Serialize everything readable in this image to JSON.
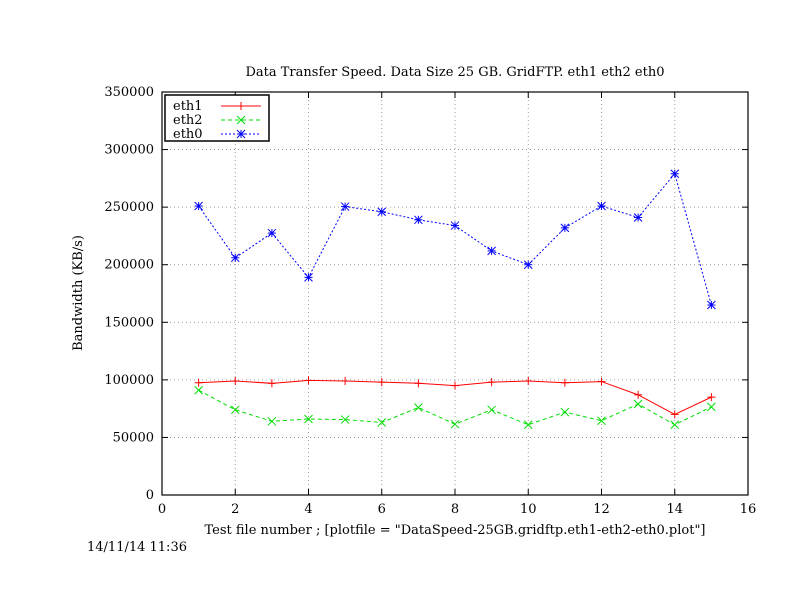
{
  "chart_data": {
    "type": "line",
    "title": "Data Transfer Speed. Data Size 25 GB. GridFTP. eth1 eth2 eth0",
    "xlabel": "Test file number ; [plotfile = \"DataSpeed-25GB.gridftp.eth1-eth2-eth0.plot\"]",
    "ylabel": "Bandwidth (KB/s)",
    "xlim": [
      0,
      16
    ],
    "ylim": [
      0,
      350000
    ],
    "xticks": [
      0,
      2,
      4,
      6,
      8,
      10,
      12,
      14,
      16
    ],
    "yticks": [
      0,
      50000,
      100000,
      150000,
      200000,
      250000,
      300000,
      350000
    ],
    "grid": true,
    "legend_position": "top-left",
    "x": [
      1,
      2,
      3,
      4,
      5,
      6,
      7,
      8,
      9,
      10,
      11,
      12,
      13,
      14,
      15
    ],
    "series": [
      {
        "name": "eth1",
        "color": "#ff0000",
        "marker": "plus",
        "dash": "solid",
        "values": [
          97500,
          99000,
          97000,
          99500,
          99000,
          98000,
          97000,
          95000,
          98000,
          99000,
          97500,
          98500,
          87000,
          70000,
          85000
        ]
      },
      {
        "name": "eth2",
        "color": "#00dd00",
        "marker": "cross",
        "dash": "dashed",
        "values": [
          91000,
          74000,
          64000,
          66000,
          65500,
          63000,
          76000,
          61500,
          74000,
          61000,
          72000,
          64500,
          79000,
          61000,
          76500
        ]
      },
      {
        "name": "eth0",
        "color": "#0000ff",
        "marker": "star",
        "dash": "dotted",
        "values": [
          251000,
          206000,
          227500,
          189000,
          250500,
          246000,
          239000,
          234000,
          212000,
          200000,
          232000,
          251000,
          241000,
          279000,
          165000
        ]
      }
    ]
  },
  "timestamp": "14/11/14 11:36"
}
